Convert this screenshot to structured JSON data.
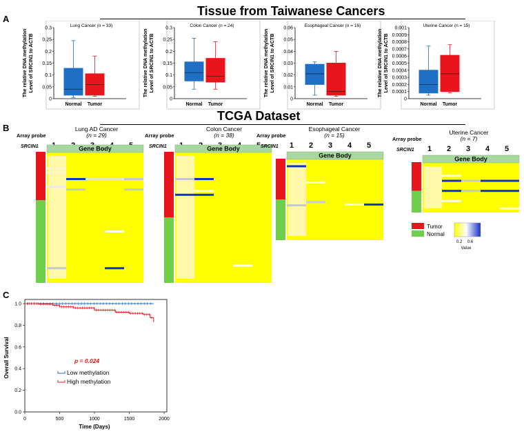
{
  "figure": {
    "top_title": "Tissue from Taiwanese Cancers",
    "mid_title": "TCGA Dataset",
    "panel_labels": [
      "A",
      "B",
      "C"
    ]
  },
  "panel_a": {
    "ylabel_line1": "The relative DNA methylation",
    "ylabel_line2": "Level of SRCIN1 to ACTB",
    "group_labels": [
      "Normal",
      "Tumor"
    ],
    "colors": {
      "normal": "#1f6fc4",
      "tumor": "#e8161c"
    },
    "charts": [
      {
        "title": "Lung Cancer (n = 33)",
        "ylim": [
          0,
          0.3
        ],
        "yticks": [
          "0",
          "0.05",
          "0.1",
          "0.15",
          "0.2",
          "0.25",
          "0.3"
        ],
        "normal": {
          "min": 0.005,
          "q1": 0.015,
          "median": 0.04,
          "q3": 0.128,
          "max": 0.245
        },
        "tumor": {
          "min": 0.01,
          "q1": 0.015,
          "median": 0.06,
          "q3": 0.105,
          "max": 0.18
        }
      },
      {
        "title": "Colon Cancer (n = 24)",
        "ylim": [
          0,
          0.3
        ],
        "yticks": [
          "0",
          "0.05",
          "0.1",
          "0.15",
          "0.2",
          "0.25",
          "0.3"
        ],
        "normal": {
          "min": 0.04,
          "q1": 0.075,
          "median": 0.11,
          "q3": 0.155,
          "max": 0.255
        },
        "tumor": {
          "min": 0.04,
          "q1": 0.07,
          "median": 0.095,
          "q3": 0.17,
          "max": 0.24
        }
      },
      {
        "title": "Esophageal Cancer (n = 16)",
        "ylim": [
          0,
          0.06
        ],
        "yticks": [
          "0",
          "0.01",
          "0.02",
          "0.03",
          "0.04",
          "0.05",
          "0.06"
        ],
        "normal": {
          "min": 0.003,
          "q1": 0.012,
          "median": 0.021,
          "q3": 0.029,
          "max": 0.031
        },
        "tumor": {
          "min": 0.002,
          "q1": 0.003,
          "median": 0.006,
          "q3": 0.03,
          "max": 0.04
        }
      },
      {
        "title": "Uterine Cancer (n = 15)",
        "ylim": [
          0,
          0.001
        ],
        "yticks": [
          "0",
          "0.0001",
          "0.0002",
          "0.0003",
          "0.0004",
          "0.0005",
          "0.0006",
          "0.0007",
          "0.0008",
          "0.0009",
          "0.001"
        ],
        "normal": {
          "min": 5e-05,
          "q1": 8e-05,
          "median": 0.0002,
          "q3": 0.0004,
          "max": 0.00074
        },
        "tumor": {
          "min": 8e-05,
          "q1": 0.0001,
          "median": 0.00035,
          "q3": 0.00061,
          "max": 0.00076
        }
      }
    ]
  },
  "panel_b": {
    "array_probe_label": "Array  probe",
    "gene_label": "SRCIN1",
    "probe_numbers": [
      "1",
      "2",
      "3",
      "4",
      "5"
    ],
    "gene_body_label": "Gene Body",
    "heatmaps": [
      {
        "title": "Lung AD Cancer",
        "n_text": "(n = 29)",
        "tumor_fraction": 0.37
      },
      {
        "title": "Colon Cancer",
        "n_text": "(n = 38)",
        "tumor_fraction": 0.5
      },
      {
        "title": "Esophageal Cancer",
        "n_text": "(n = 15)",
        "tumor_fraction": 0.5
      },
      {
        "title": "Uterine Cancer",
        "n_text": "(n = 7)",
        "tumor_fraction": 0.57
      }
    ],
    "legend": {
      "tumor": "Tumor",
      "normal": "Normal",
      "tumor_color": "#e8161c",
      "normal_color": "#6fcf4b",
      "scale_ticks": [
        "0.2",
        "0.6"
      ],
      "scale_label": "Value"
    },
    "colors": {
      "high": "#1530c8",
      "low": "#ffff00",
      "gene_body": "#a8d8a0"
    }
  },
  "panel_c": {
    "ylabel": "Overall Survival",
    "xlabel": "Time (Days)",
    "yticks": [
      "0.0",
      "0.2",
      "0.4",
      "0.6",
      "0.8",
      "1.0"
    ],
    "xticks": [
      "0",
      "500",
      "1000",
      "1500",
      "2000"
    ],
    "p_value": "p = 0.024",
    "legend": [
      "Low methylation",
      "High methylation"
    ],
    "chart_data": {
      "type": "line",
      "xlabel": "Time (Days)",
      "ylabel": "Overall Survival",
      "xlim": [
        0,
        2000
      ],
      "ylim": [
        0,
        1.0
      ],
      "series": [
        {
          "name": "Low methylation",
          "color": "#1f6fc4",
          "x": [
            0,
            300,
            600,
            900,
            1200,
            1500,
            1850
          ],
          "y": [
            1.0,
            1.0,
            1.0,
            1.0,
            1.0,
            1.0,
            1.0
          ]
        },
        {
          "name": "High methylation",
          "color": "#e8161c",
          "x": [
            0,
            200,
            400,
            500,
            700,
            1000,
            1300,
            1500,
            1700,
            1800,
            1850
          ],
          "y": [
            1.0,
            0.995,
            0.985,
            0.97,
            0.96,
            0.94,
            0.92,
            0.91,
            0.9,
            0.87,
            0.83
          ]
        }
      ]
    }
  }
}
